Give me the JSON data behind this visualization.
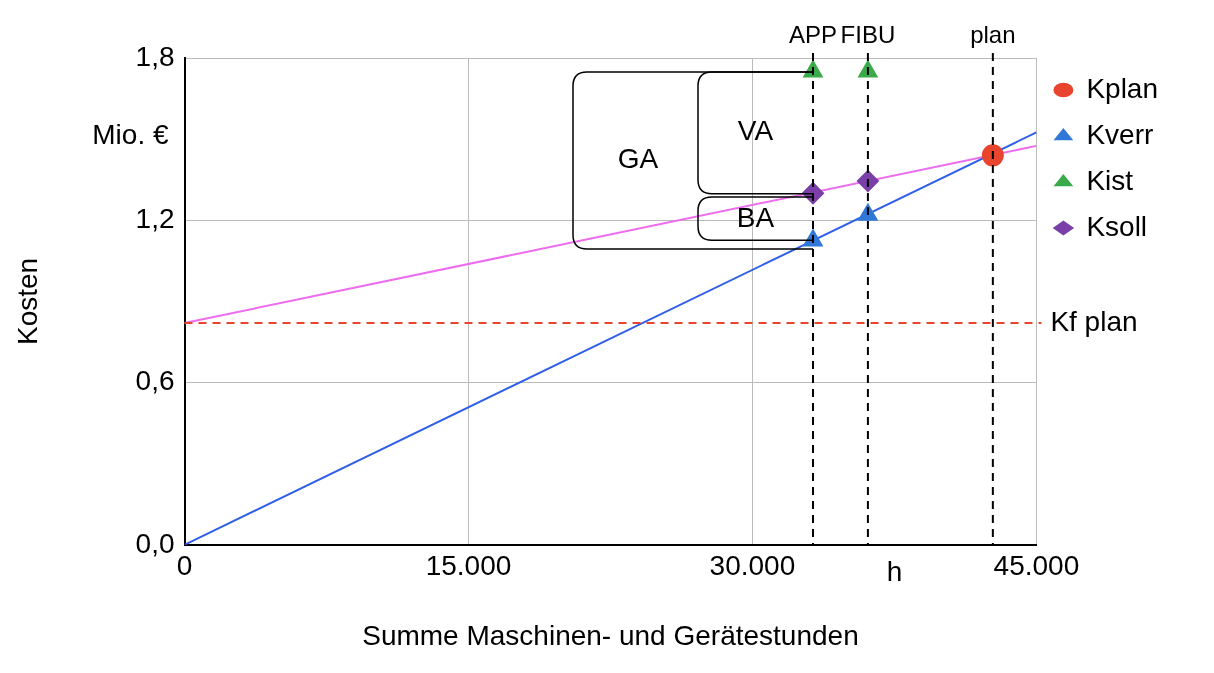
{
  "chart_data": {
    "type": "line",
    "xlabel": "Summe Maschinen- und Gerätestunden",
    "ylabel": "Kosten",
    "xlim": [
      0,
      45000
    ],
    "ylim": [
      0,
      1.8
    ],
    "xticks": [
      {
        "value": 0,
        "label": "0"
      },
      {
        "value": 15000,
        "label": "15.000"
      },
      {
        "value": 30000,
        "label": "30.000"
      },
      {
        "value": 45000,
        "label": "45.000"
      }
    ],
    "yticks": [
      {
        "value": 0,
        "label": "0,0"
      },
      {
        "value": 0.6,
        "label": "0,6"
      },
      {
        "value": 1.2,
        "label": "1,2"
      },
      {
        "value": 1.8,
        "label": "1,8"
      }
    ],
    "grid": true,
    "legend": "top right",
    "series": [
      {
        "name": "Kplan",
        "type": "scatter",
        "marker": "circle",
        "color": "#e8442e",
        "x": [
          42700
        ],
        "values": [
          1.44
        ]
      },
      {
        "name": "Kverr",
        "type": "scatter",
        "marker": "triangle",
        "color": "#2f78d8",
        "x": [
          33200,
          36100
        ],
        "values": [
          1.125,
          1.22
        ]
      },
      {
        "name": "Kist",
        "type": "scatter",
        "marker": "triangle",
        "color": "#3aaa4a",
        "x": [
          33200,
          36100
        ],
        "values": [
          1.75,
          1.75
        ]
      },
      {
        "name": "Ksoll",
        "type": "scatter",
        "marker": "diamond",
        "color": "#7b3fa8",
        "x": [
          33200,
          36100
        ],
        "values": [
          1.3,
          1.345
        ]
      },
      {
        "type": "line",
        "marker": "none",
        "color": "#2f5fe8",
        "x": [
          0,
          45000
        ],
        "values": [
          0,
          1.525
        ]
      },
      {
        "type": "line",
        "marker": "none",
        "color": "#ee6cee",
        "x": [
          0,
          45000
        ],
        "values": [
          0.82,
          1.475
        ]
      }
    ],
    "ref_lines": [
      {
        "axis": "x",
        "value": 33200,
        "label": "APP",
        "color": "#000000",
        "line_style": "dashed"
      },
      {
        "axis": "x",
        "value": 36100,
        "label": "FIBU",
        "color": "#000000",
        "line_style": "dashed"
      },
      {
        "axis": "x",
        "value": 42700,
        "label": "plan",
        "color": "#000000",
        "line_style": "dashed"
      },
      {
        "axis": "y",
        "value": 0.82,
        "label": "Kf plan",
        "color": "#e8442e",
        "line_style": "dashed"
      }
    ],
    "annotations": [
      "Mio. €",
      "h",
      "GA",
      "VA",
      "BA"
    ]
  }
}
